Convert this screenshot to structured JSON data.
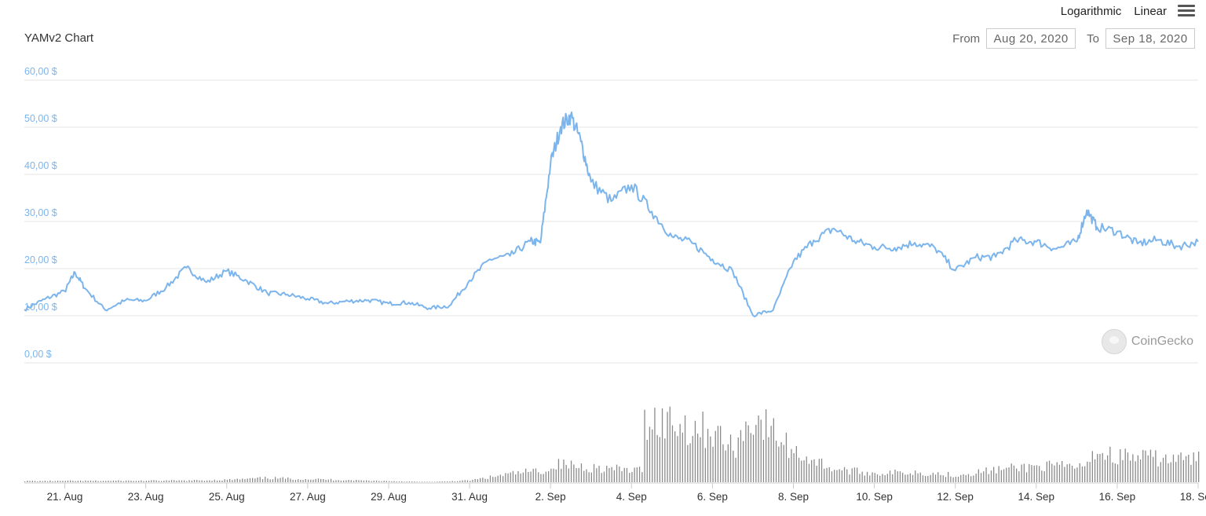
{
  "header": {
    "title": "YAMv2 Chart",
    "scale_options": [
      "Logarithmic",
      "Linear"
    ],
    "menu_icon": "hamburger-menu-icon"
  },
  "range": {
    "from_label": "From",
    "from_value": "Aug 20, 2020",
    "to_label": "To",
    "to_value": "Sep 18, 2020"
  },
  "watermark": {
    "text": "CoinGecko",
    "icon": "gecko-logo-icon"
  },
  "colors": {
    "line": "#7cb5ec",
    "volume": "#8a8a8a",
    "grid": "#e6e6e6",
    "axis_labels": "#7cb5ec"
  },
  "chart_data": {
    "type": "line",
    "title": "YAMv2 Chart",
    "xlabel": "",
    "ylabel": "",
    "ylim": [
      0,
      60
    ],
    "y_ticks": [
      "0,00 $",
      "10,00 $",
      "20,00 $",
      "30,00 $",
      "40,00 $",
      "50,00 $",
      "60,00 $"
    ],
    "y_tick_values": [
      0,
      10,
      20,
      30,
      40,
      50,
      60
    ],
    "x_tick_labels": [
      "21. Aug",
      "23. Aug",
      "25. Aug",
      "27. Aug",
      "29. Aug",
      "31. Aug",
      "2. Sep",
      "4. Sep",
      "6. Sep",
      "8. Sep",
      "10. Sep",
      "12. Sep",
      "14. Sep",
      "16. Sep",
      "18. Sep"
    ],
    "x_tick_days": [
      1,
      3,
      5,
      7,
      9,
      11,
      13,
      15,
      17,
      19,
      21,
      23,
      25,
      27,
      29
    ],
    "xlim": [
      "2020-08-20",
      "2020-09-18"
    ],
    "grid": true,
    "legend": "none",
    "series": [
      {
        "type": "line",
        "x": [
          "2020-08-20",
          "2020-08-20 12:00",
          "2020-08-21",
          "2020-08-21 06:00",
          "2020-08-21 12:00",
          "2020-08-22",
          "2020-08-22 12:00",
          "2020-08-23",
          "2020-08-23 12:00",
          "2020-08-24",
          "2020-08-24 12:00",
          "2020-08-25",
          "2020-08-25 12:00",
          "2020-08-26",
          "2020-08-26 12:00",
          "2020-08-27",
          "2020-08-27 12:00",
          "2020-08-28",
          "2020-08-28 12:00",
          "2020-08-29",
          "2020-08-29 12:00",
          "2020-08-30",
          "2020-08-30 12:00",
          "2020-08-31",
          "2020-08-31 12:00",
          "2020-09-01",
          "2020-09-01 12:00",
          "2020-09-01 18:00",
          "2020-09-02",
          "2020-09-02 06:00",
          "2020-09-02 12:00",
          "2020-09-02 18:00",
          "2020-09-03",
          "2020-09-03 12:00",
          "2020-09-04",
          "2020-09-04 12:00",
          "2020-09-05",
          "2020-09-05 12:00",
          "2020-09-06",
          "2020-09-06 12:00",
          "2020-09-07",
          "2020-09-07 12:00",
          "2020-09-08",
          "2020-09-08 12:00",
          "2020-09-09",
          "2020-09-09 12:00",
          "2020-09-10",
          "2020-09-10 12:00",
          "2020-09-11",
          "2020-09-11 12:00",
          "2020-09-12",
          "2020-09-12 12:00",
          "2020-09-13",
          "2020-09-13 12:00",
          "2020-09-14",
          "2020-09-14 12:00",
          "2020-09-15",
          "2020-09-15 06:00",
          "2020-09-15 12:00",
          "2020-09-16",
          "2020-09-16 12:00",
          "2020-09-17",
          "2020-09-17 12:00",
          "2020-09-18"
        ],
        "y": [
          11.3,
          13.5,
          15.2,
          19.2,
          15.8,
          11.2,
          13.3,
          13.2,
          16.0,
          20.2,
          17.1,
          19.5,
          17.4,
          14.8,
          14.5,
          13.6,
          12.6,
          13.1,
          13.3,
          12.6,
          12.8,
          11.6,
          12.1,
          17.5,
          22.0,
          22.7,
          25.8,
          25.5,
          42.3,
          50.1,
          52.5,
          47.0,
          38.4,
          34.3,
          37.7,
          32.1,
          26.8,
          25.4,
          22.0,
          19.5,
          10.1,
          11.2,
          21.5,
          26.0,
          28.5,
          25.9,
          24.6,
          24.4,
          25.5,
          24.4,
          19.6,
          22.4,
          22.5,
          26.0,
          25.7,
          24.2,
          25.7,
          32.4,
          28.8,
          27.9,
          25.3,
          26.1,
          24.7,
          25.7
        ]
      },
      {
        "name": "Volume",
        "type": "bar",
        "x": [
          "2020-08-20",
          "2020-08-22",
          "2020-08-24",
          "2020-08-25",
          "2020-08-26",
          "2020-08-28",
          "2020-08-29",
          "2020-08-30",
          "2020-08-31",
          "2020-09-01",
          "2020-09-01 18:00",
          "2020-09-02",
          "2020-09-03",
          "2020-09-04",
          "2020-09-04 06:00",
          "2020-09-05",
          "2020-09-05 12:00",
          "2020-09-06",
          "2020-09-06 12:00",
          "2020-09-07",
          "2020-09-08",
          "2020-09-09",
          "2020-09-10",
          "2020-09-11",
          "2020-09-12",
          "2020-09-13",
          "2020-09-14",
          "2020-09-15",
          "2020-09-15 06:00",
          "2020-09-16",
          "2020-09-17",
          "2020-09-18"
        ],
        "y": [
          0.1,
          0.12,
          0.14,
          0.2,
          0.35,
          0.18,
          0.1,
          0.02,
          0.15,
          0.7,
          1.0,
          1.55,
          1.25,
          1.0,
          5.4,
          5.1,
          4.6,
          4.3,
          2.8,
          5.6,
          2.6,
          1.1,
          0.75,
          0.85,
          0.6,
          1.05,
          1.35,
          1.3,
          2.6,
          2.2,
          2.0,
          1.9
        ]
      }
    ]
  }
}
